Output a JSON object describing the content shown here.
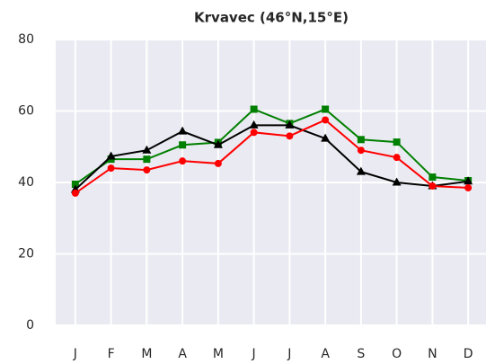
{
  "chart_data": {
    "type": "line",
    "title": "Krvavec (46°N,15°E)",
    "categories": [
      "J",
      "F",
      "M",
      "A",
      "M",
      "J",
      "J",
      "A",
      "S",
      "O",
      "N",
      "D"
    ],
    "series": [
      {
        "name": "Green",
        "color": "#008000",
        "marker": "square",
        "values": [
          39.5,
          46.5,
          46.5,
          50.5,
          51.2,
          60.5,
          56.5,
          60.5,
          52,
          51.3,
          41.5,
          40.5
        ]
      },
      {
        "name": "Black",
        "color": "#000000",
        "marker": "triangle",
        "values": [
          38,
          47.3,
          49,
          54.3,
          50.5,
          56,
          56,
          52.3,
          43,
          40,
          39,
          40.3
        ]
      },
      {
        "name": "Red",
        "color": "#ff0000",
        "marker": "circle",
        "values": [
          37,
          44,
          43.5,
          46,
          45.3,
          54,
          53,
          57.5,
          49,
          47,
          39,
          38.5
        ]
      }
    ],
    "ylim": [
      0,
      80
    ],
    "yticks": [
      0,
      20,
      40,
      60,
      80
    ],
    "grid": true
  }
}
